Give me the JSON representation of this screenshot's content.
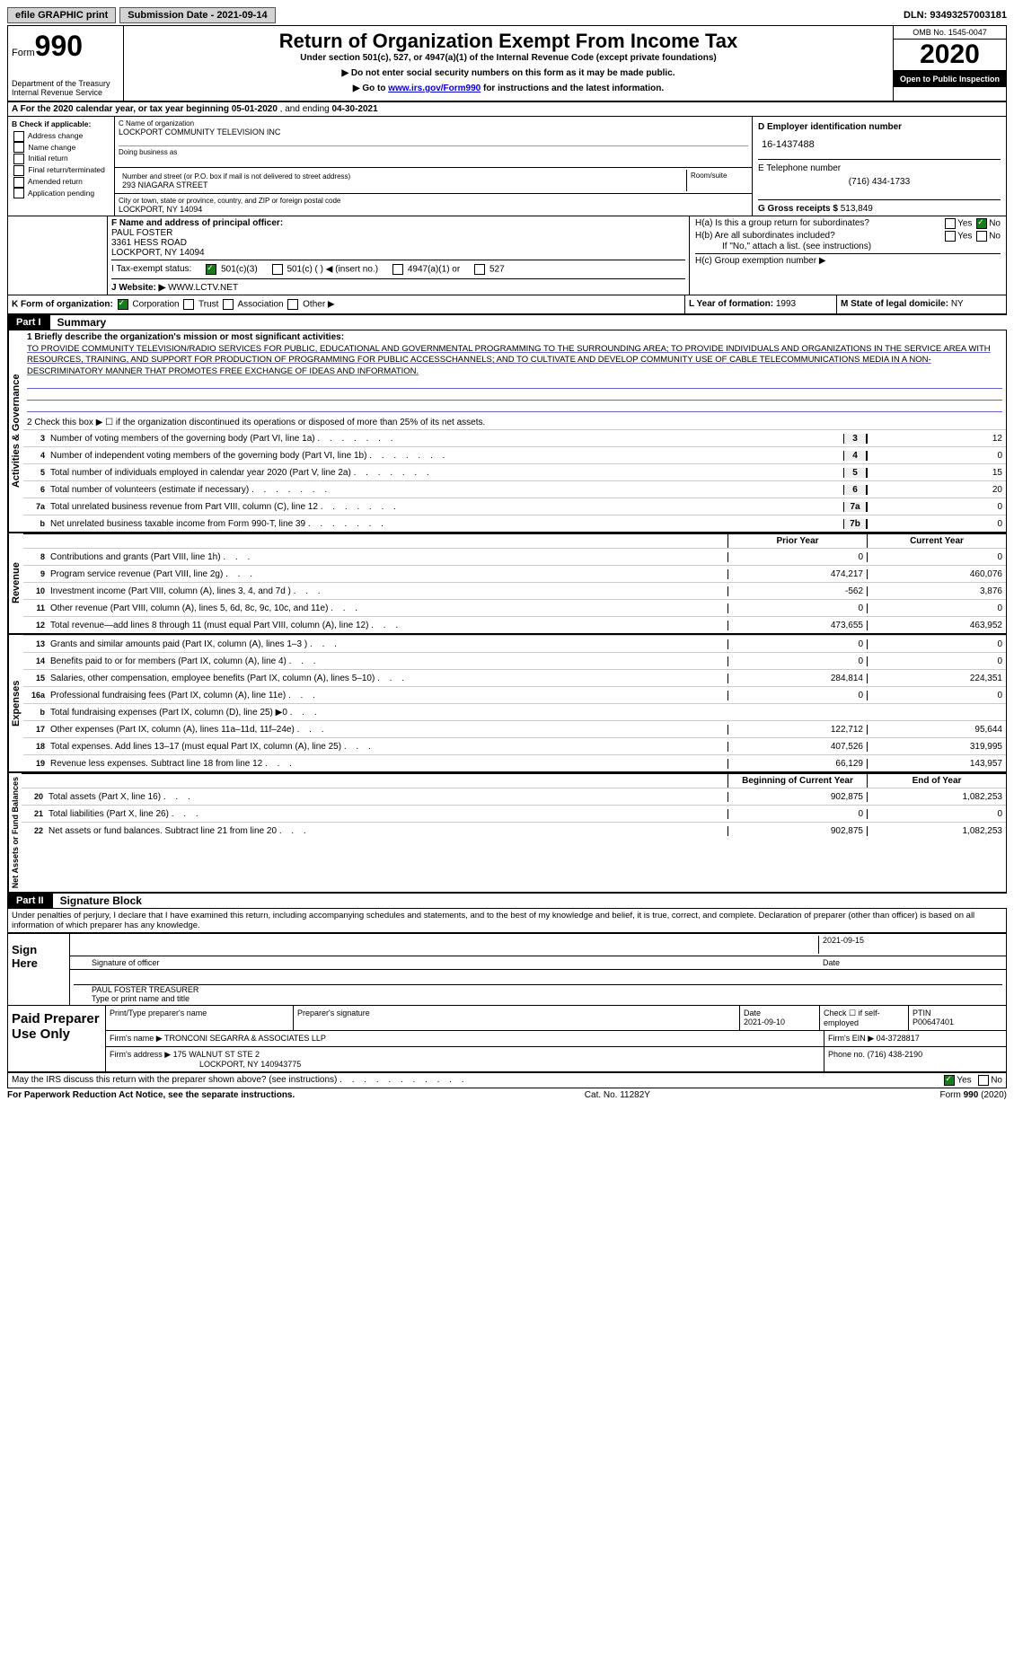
{
  "top": {
    "efile": "efile GRAPHIC print",
    "subdate": "Submission Date - 2021-09-14",
    "dln": "DLN: 93493257003181"
  },
  "header": {
    "form_label": "Form",
    "form_num": "990",
    "dept": "Department of the Treasury\nInternal Revenue Service",
    "title": "Return of Organization Exempt From Income Tax",
    "sub1": "Under section 501(c), 527, or 4947(a)(1) of the Internal Revenue Code (except private foundations)",
    "sub2": "▶ Do not enter social security numbers on this form as it may be made public.",
    "sub3_pre": "▶ Go to ",
    "sub3_link": "www.irs.gov/Form990",
    "sub3_post": " for instructions and the latest information.",
    "omb": "OMB No. 1545-0047",
    "year": "2020",
    "inspection": "Open to Public Inspection"
  },
  "rowA": {
    "text_pre": "A For the 2020 calendar year, or tax year beginning ",
    "begin": "05-01-2020",
    "mid": " , and ending ",
    "end": "04-30-2021"
  },
  "colB": {
    "header": "B Check if applicable:",
    "items": [
      "Address change",
      "Name change",
      "Initial return",
      "Final return/terminated",
      "Amended return",
      "Application pending"
    ]
  },
  "colC": {
    "name_label": "C Name of organization",
    "name": "LOCKPORT COMMUNITY TELEVISION INC",
    "dba_label": "Doing business as",
    "addr_label": "Number and street (or P.O. box if mail is not delivered to street address)",
    "addr": "293 NIAGARA STREET",
    "room_label": "Room/suite",
    "city_label": "City or town, state or province, country, and ZIP or foreign postal code",
    "city": "LOCKPORT, NY  14094"
  },
  "colD": {
    "ein_label": "D Employer identification number",
    "ein": "16-1437488",
    "tel_label": "E Telephone number",
    "tel": "(716) 434-1733",
    "gross_label": "G Gross receipts $",
    "gross": "513,849"
  },
  "colF": {
    "label": "F Name and address of principal officer:",
    "name": "PAUL FOSTER",
    "addr1": "3361 HESS ROAD",
    "addr2": "LOCKPORT, NY  14094"
  },
  "colH": {
    "a_label": "H(a) Is this a group return for subordinates?",
    "b_label": "H(b) Are all subordinates included?",
    "b_note": "If \"No,\" attach a list. (see instructions)",
    "c_label": "H(c) Group exemption number ▶"
  },
  "rowI": {
    "label": "I   Tax-exempt status:",
    "opt1": "501(c)(3)",
    "opt2": "501(c) (   ) ◀ (insert no.)",
    "opt3": "4947(a)(1) or",
    "opt4": "527"
  },
  "rowJ": {
    "label": "J   Website: ▶",
    "value": "WWW.LCTV.NET"
  },
  "rowK": {
    "label": "K Form of organization:",
    "corp": "Corporation",
    "trust": "Trust",
    "assoc": "Association",
    "other": "Other ▶"
  },
  "rowL": {
    "label": "L Year of formation:",
    "value": "1993"
  },
  "rowM": {
    "label": "M State of legal domicile:",
    "value": "NY"
  },
  "partI": {
    "tab": "Part I",
    "title": "Summary"
  },
  "summary": {
    "line1_label": "1  Briefly describe the organization's mission or most significant activities:",
    "mission": "TO PROVIDE COMMUNITY TELEVISION/RADIO SERVICES FOR PUBLIC, EDUCATIONAL AND GOVERNMENTAL PROGRAMMING TO THE SURROUNDING AREA; TO PROVIDE INDIVIDUALS AND ORGANIZATIONS IN THE SERVICE AREA WITH RESOURCES, TRAINING, AND SUPPORT FOR PRODUCTION OF PROGRAMMING FOR PUBLIC ACCESSCHANNELS; AND TO CULTIVATE AND DEVELOP COMMUNITY USE OF CABLE TELECOMMUNICATIONS MEDIA IN A NON-DESCRIMINATORY MANNER THAT PROMOTES FREE EXCHANGE OF IDEAS AND INFORMATION.",
    "line2": "2   Check this box ▶ ☐ if the organization discontinued its operations or disposed of more than 25% of its net assets.",
    "lines_single": [
      {
        "num": "3",
        "label": "Number of voting members of the governing body (Part VI, line 1a)",
        "box": "3",
        "val": "12"
      },
      {
        "num": "4",
        "label": "Number of independent voting members of the governing body (Part VI, line 1b)",
        "box": "4",
        "val": "0"
      },
      {
        "num": "5",
        "label": "Total number of individuals employed in calendar year 2020 (Part V, line 2a)",
        "box": "5",
        "val": "15"
      },
      {
        "num": "6",
        "label": "Total number of volunteers (estimate if necessary)",
        "box": "6",
        "val": "20"
      },
      {
        "num": "7a",
        "label": "Total unrelated business revenue from Part VIII, column (C), line 12",
        "box": "7a",
        "val": "0"
      },
      {
        "num": "b",
        "label": "Net unrelated business taxable income from Form 990-T, line 39",
        "box": "7b",
        "val": "0"
      }
    ]
  },
  "revenue": {
    "vert": "Revenue",
    "header_prior": "Prior Year",
    "header_curr": "Current Year",
    "lines": [
      {
        "num": "8",
        "label": "Contributions and grants (Part VIII, line 1h)",
        "prior": "0",
        "curr": "0"
      },
      {
        "num": "9",
        "label": "Program service revenue (Part VIII, line 2g)",
        "prior": "474,217",
        "curr": "460,076"
      },
      {
        "num": "10",
        "label": "Investment income (Part VIII, column (A), lines 3, 4, and 7d )",
        "prior": "-562",
        "curr": "3,876"
      },
      {
        "num": "11",
        "label": "Other revenue (Part VIII, column (A), lines 5, 6d, 8c, 9c, 10c, and 11e)",
        "prior": "0",
        "curr": "0"
      },
      {
        "num": "12",
        "label": "Total revenue—add lines 8 through 11 (must equal Part VIII, column (A), line 12)",
        "prior": "473,655",
        "curr": "463,952"
      }
    ]
  },
  "expenses": {
    "vert": "Expenses",
    "lines": [
      {
        "num": "13",
        "label": "Grants and similar amounts paid (Part IX, column (A), lines 1–3 )",
        "prior": "0",
        "curr": "0"
      },
      {
        "num": "14",
        "label": "Benefits paid to or for members (Part IX, column (A), line 4)",
        "prior": "0",
        "curr": "0"
      },
      {
        "num": "15",
        "label": "Salaries, other compensation, employee benefits (Part IX, column (A), lines 5–10)",
        "prior": "284,814",
        "curr": "224,351"
      },
      {
        "num": "16a",
        "label": "Professional fundraising fees (Part IX, column (A), line 11e)",
        "prior": "0",
        "curr": "0"
      },
      {
        "num": "b",
        "label": "Total fundraising expenses (Part IX, column (D), line 25) ▶0",
        "prior": "",
        "curr": "",
        "grey": true
      },
      {
        "num": "17",
        "label": "Other expenses (Part IX, column (A), lines 11a–11d, 11f–24e)",
        "prior": "122,712",
        "curr": "95,644"
      },
      {
        "num": "18",
        "label": "Total expenses. Add lines 13–17 (must equal Part IX, column (A), line 25)",
        "prior": "407,526",
        "curr": "319,995"
      },
      {
        "num": "19",
        "label": "Revenue less expenses. Subtract line 18 from line 12",
        "prior": "66,129",
        "curr": "143,957"
      }
    ]
  },
  "netassets": {
    "vert": "Net Assets or Fund Balances",
    "header_begin": "Beginning of Current Year",
    "header_end": "End of Year",
    "lines": [
      {
        "num": "20",
        "label": "Total assets (Part X, line 16)",
        "prior": "902,875",
        "curr": "1,082,253"
      },
      {
        "num": "21",
        "label": "Total liabilities (Part X, line 26)",
        "prior": "0",
        "curr": "0"
      },
      {
        "num": "22",
        "label": "Net assets or fund balances. Subtract line 21 from line 20",
        "prior": "902,875",
        "curr": "1,082,253"
      }
    ]
  },
  "partII": {
    "tab": "Part II",
    "title": "Signature Block"
  },
  "sig": {
    "declaration": "Under penalties of perjury, I declare that I have examined this return, including accompanying schedules and statements, and to the best of my knowledge and belief, it is true, correct, and complete. Declaration of preparer (other than officer) is based on all information of which preparer has any knowledge.",
    "sign_here": "Sign Here",
    "sig_officer_label": "Signature of officer",
    "date": "2021-09-15",
    "date_label": "Date",
    "name": "PAUL FOSTER  TREASURER",
    "name_label": "Type or print name and title"
  },
  "prep": {
    "label": "Paid Preparer Use Only",
    "h1": "Print/Type preparer's name",
    "h2": "Preparer's signature",
    "h3_label": "Date",
    "h3": "2021-09-10",
    "h4": "Check ☐ if self-employed",
    "h5_label": "PTIN",
    "h5": "P00647401",
    "firm_label": "Firm's name    ▶",
    "firm": "TRONCONI SEGARRA & ASSOCIATES LLP",
    "ein_label": "Firm's EIN ▶",
    "ein": "04-3728817",
    "addr_label": "Firm's address ▶",
    "addr1": "175 WALNUT ST STE 2",
    "addr2": "LOCKPORT, NY  140943775",
    "phone_label": "Phone no.",
    "phone": "(716) 438-2190"
  },
  "footer": {
    "discuss": "May the IRS discuss this return with the preparer shown above? (see instructions)",
    "paperwork": "For Paperwork Reduction Act Notice, see the separate instructions.",
    "cat": "Cat. No. 11282Y",
    "form": "Form 990 (2020)"
  }
}
